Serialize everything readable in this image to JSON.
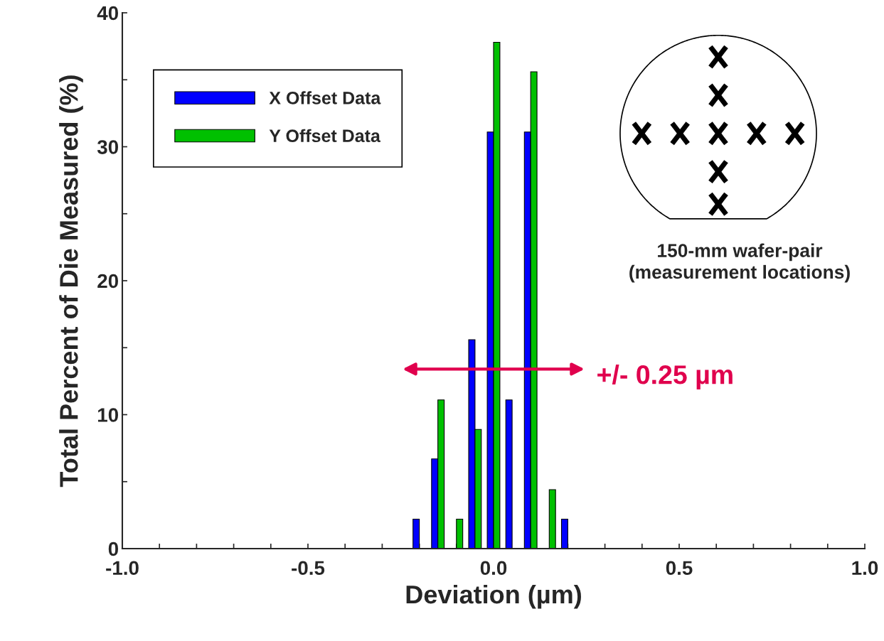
{
  "chart_data": {
    "type": "bar",
    "xlabel": "Deviation (µm)",
    "ylabel": "Total Percent of Die Measured (%)",
    "x": [
      -0.2,
      -0.15,
      -0.1,
      -0.05,
      0.0,
      0.05,
      0.1,
      0.15,
      0.2
    ],
    "series": [
      {
        "name": "X Offset Data",
        "color": "#0000ff",
        "values": [
          2.2,
          6.7,
          null,
          15.6,
          31.1,
          11.1,
          31.1,
          null,
          2.2
        ]
      },
      {
        "name": "Y Offset Data",
        "color": "#00c000",
        "values": [
          null,
          11.1,
          2.2,
          8.9,
          37.8,
          null,
          35.6,
          4.4,
          null
        ]
      }
    ],
    "xlim": [
      -1.0,
      1.0
    ],
    "xticks": [
      {
        "value": -1.0,
        "label": "-1.0"
      },
      {
        "value": -0.9,
        "label": null
      },
      {
        "value": -0.8,
        "label": null
      },
      {
        "value": -0.7,
        "label": null
      },
      {
        "value": -0.6,
        "label": null
      },
      {
        "value": -0.5,
        "label": "-0.5"
      },
      {
        "value": -0.4,
        "label": null
      },
      {
        "value": -0.3,
        "label": null
      },
      {
        "value": -0.2,
        "label": null
      },
      {
        "value": -0.1,
        "label": null
      },
      {
        "value": 0.0,
        "label": "0.0"
      },
      {
        "value": 0.1,
        "label": null
      },
      {
        "value": 0.2,
        "label": null
      },
      {
        "value": 0.3,
        "label": null
      },
      {
        "value": 0.4,
        "label": null
      },
      {
        "value": 0.5,
        "label": "0.5"
      },
      {
        "value": 0.6,
        "label": null
      },
      {
        "value": 0.7,
        "label": null
      },
      {
        "value": 0.8,
        "label": null
      },
      {
        "value": 0.9,
        "label": null
      },
      {
        "value": 1.0,
        "label": "1.0"
      }
    ],
    "ylim": [
      0,
      40
    ],
    "yticks": [
      0,
      {
        "value": 5,
        "label": null
      },
      10,
      {
        "value": 15,
        "label": null
      },
      20,
      {
        "value": 25,
        "label": null
      },
      30,
      {
        "value": 35,
        "label": null
      },
      40
    ],
    "grid": false,
    "legend": "top left",
    "annotations": [
      "+/- 0.25 µm",
      "150-mm wafer-pair\n(measurement locations)"
    ]
  }
}
